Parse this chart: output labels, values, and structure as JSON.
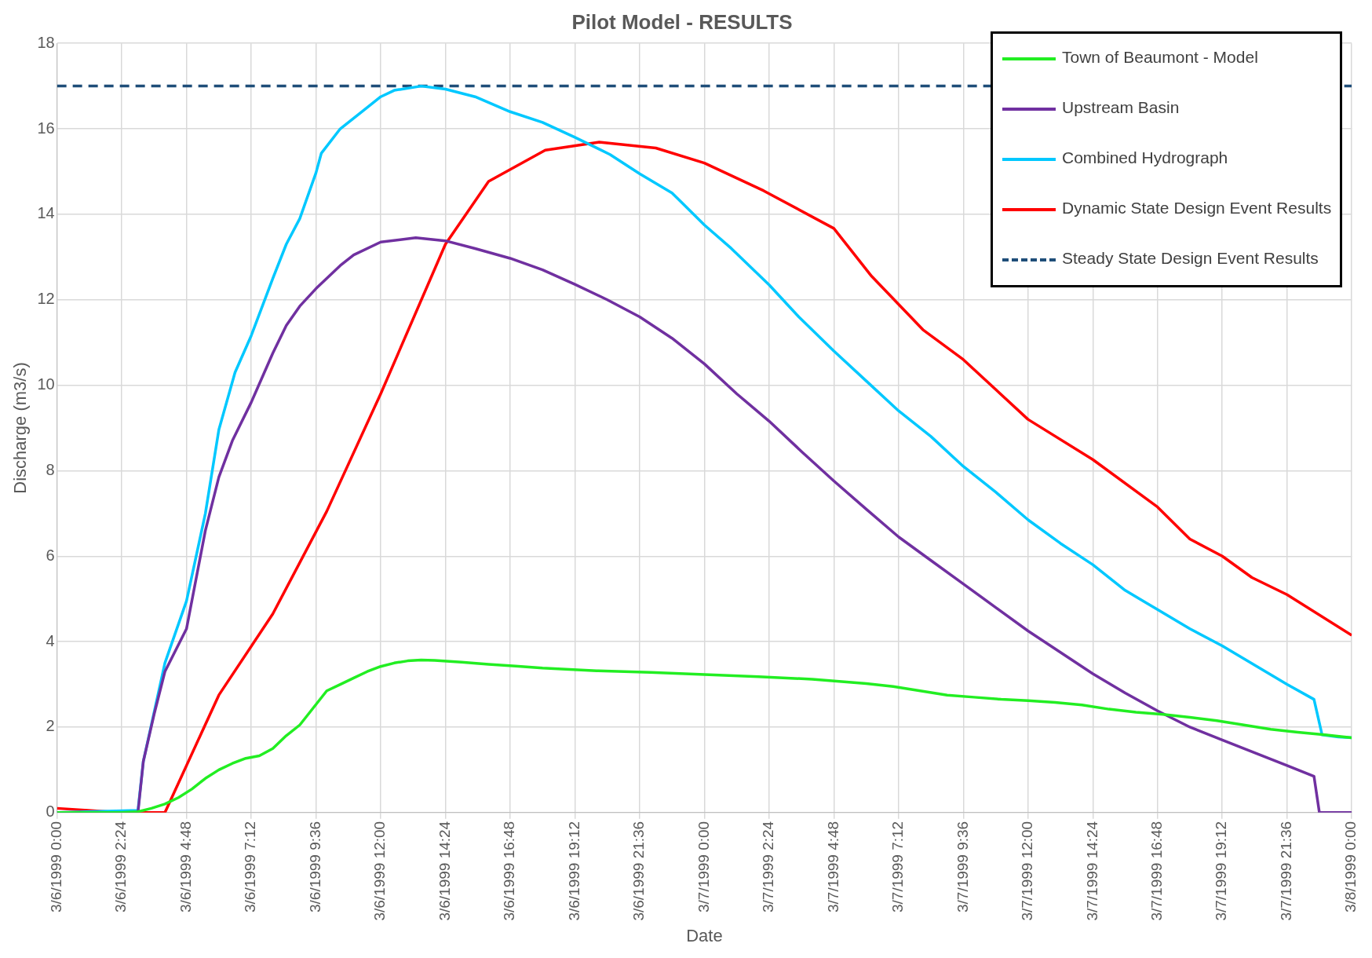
{
  "chart_data": {
    "type": "line",
    "title": "Pilot Model - RESULTS",
    "xlabel": "Date",
    "ylabel": "Discharge (m3/s)",
    "xlim": [
      "1999-03-06T00:00",
      "1999-03-08T00:00"
    ],
    "ylim": [
      0,
      18
    ],
    "xticks": [
      {
        "value": "1999-03-06T00:00",
        "label": "3/6/1999 0:00"
      },
      {
        "value": "1999-03-06T02:24",
        "label": "3/6/1999 2:24"
      },
      {
        "value": "1999-03-06T04:48",
        "label": "3/6/1999 4:48"
      },
      {
        "value": "1999-03-06T07:12",
        "label": "3/6/1999 7:12"
      },
      {
        "value": "1999-03-06T09:36",
        "label": "3/6/1999 9:36"
      },
      {
        "value": "1999-03-06T12:00",
        "label": "3/6/1999 12:00"
      },
      {
        "value": "1999-03-06T14:24",
        "label": "3/6/1999 14:24"
      },
      {
        "value": "1999-03-06T16:48",
        "label": "3/6/1999 16:48"
      },
      {
        "value": "1999-03-06T19:12",
        "label": "3/6/1999 19:12"
      },
      {
        "value": "1999-03-06T21:36",
        "label": "3/6/1999 21:36"
      },
      {
        "value": "1999-03-07T00:00",
        "label": "3/7/1999 0:00"
      },
      {
        "value": "1999-03-07T02:24",
        "label": "3/7/1999 2:24"
      },
      {
        "value": "1999-03-07T04:48",
        "label": "3/7/1999 4:48"
      },
      {
        "value": "1999-03-07T07:12",
        "label": "3/7/1999 7:12"
      },
      {
        "value": "1999-03-07T09:36",
        "label": "3/7/1999 9:36"
      },
      {
        "value": "1999-03-07T12:00",
        "label": "3/7/1999 12:00"
      },
      {
        "value": "1999-03-07T14:24",
        "label": "3/7/1999 14:24"
      },
      {
        "value": "1999-03-07T16:48",
        "label": "3/7/1999 16:48"
      },
      {
        "value": "1999-03-07T19:12",
        "label": "3/7/1999 19:12"
      },
      {
        "value": "1999-03-07T21:36",
        "label": "3/7/1999 21:36"
      },
      {
        "value": "1999-03-08T00:00",
        "label": "3/8/1999 0:00"
      }
    ],
    "yticks": [
      0,
      2,
      4,
      6,
      8,
      10,
      12,
      14,
      16,
      18
    ],
    "grid": true,
    "legend": "top right",
    "marker": "none",
    "series": [
      {
        "name": "Town of Beaumont - Model",
        "color": "#22ee22",
        "x": [
          "1999-03-06T00:00",
          "1999-03-06T02:24",
          "1999-03-06T03:00",
          "1999-03-06T03:30",
          "1999-03-06T04:00",
          "1999-03-06T04:30",
          "1999-03-06T05:00",
          "1999-03-06T05:30",
          "1999-03-06T06:00",
          "1999-03-06T06:30",
          "1999-03-06T07:00",
          "1999-03-06T07:30",
          "1999-03-06T08:00",
          "1999-03-06T08:30",
          "1999-03-06T09:00",
          "1999-03-06T09:30",
          "1999-03-06T10:00",
          "1999-03-06T10:30",
          "1999-03-06T11:00",
          "1999-03-06T11:30",
          "1999-03-06T12:00",
          "1999-03-06T12:30",
          "1999-03-06T13:00",
          "1999-03-06T13:30",
          "1999-03-06T14:00",
          "1999-03-06T15:00",
          "1999-03-06T16:00",
          "1999-03-06T17:00",
          "1999-03-06T18:00",
          "1999-03-06T19:00",
          "1999-03-06T20:00",
          "1999-03-06T22:00",
          "1999-03-07T00:00",
          "1999-03-07T02:00",
          "1999-03-07T04:00",
          "1999-03-07T05:00",
          "1999-03-07T06:00",
          "1999-03-07T07:00",
          "1999-03-07T08:00",
          "1999-03-07T09:00",
          "1999-03-07T10:00",
          "1999-03-07T11:00",
          "1999-03-07T12:00",
          "1999-03-07T13:00",
          "1999-03-07T14:00",
          "1999-03-07T15:00",
          "1999-03-07T16:00",
          "1999-03-07T17:00",
          "1999-03-07T18:00",
          "1999-03-07T19:00",
          "1999-03-07T20:00",
          "1999-03-07T21:00",
          "1999-03-07T22:00",
          "1999-03-07T23:00",
          "1999-03-08T00:00"
        ],
        "values": [
          0,
          0,
          0.02,
          0.1,
          0.2,
          0.35,
          0.55,
          0.8,
          1.0,
          1.15,
          1.27,
          1.33,
          1.5,
          1.8,
          2.05,
          2.45,
          2.85,
          3.0,
          3.15,
          3.3,
          3.42,
          3.5,
          3.55,
          3.57,
          3.56,
          3.52,
          3.47,
          3.43,
          3.38,
          3.35,
          3.32,
          3.28,
          3.23,
          3.18,
          3.12,
          3.07,
          3.02,
          2.95,
          2.85,
          2.75,
          2.7,
          2.65,
          2.62,
          2.58,
          2.52,
          2.42,
          2.35,
          2.3,
          2.23,
          2.15,
          2.05,
          1.95,
          1.88,
          1.82,
          1.75
        ]
      },
      {
        "name": "Upstream Basin",
        "color": "#7030a0",
        "x": [
          "1999-03-06T00:00",
          "1999-03-06T03:00",
          "1999-03-06T03:12",
          "1999-03-06T03:36",
          "1999-03-06T04:00",
          "1999-03-06T04:48",
          "1999-03-06T05:30",
          "1999-03-06T06:00",
          "1999-03-06T06:30",
          "1999-03-06T07:12",
          "1999-03-06T08:00",
          "1999-03-06T08:30",
          "1999-03-06T09:00",
          "1999-03-06T09:36",
          "1999-03-06T10:30",
          "1999-03-06T11:00",
          "1999-03-06T12:00",
          "1999-03-06T13:18",
          "1999-03-06T14:24",
          "1999-03-06T15:30",
          "1999-03-06T16:48",
          "1999-03-06T18:00",
          "1999-03-06T19:12",
          "1999-03-06T20:24",
          "1999-03-06T21:36",
          "1999-03-06T22:48",
          "1999-03-07T00:00",
          "1999-03-07T01:12",
          "1999-03-07T02:24",
          "1999-03-07T03:36",
          "1999-03-07T04:48",
          "1999-03-07T06:00",
          "1999-03-07T07:12",
          "1999-03-07T08:24",
          "1999-03-07T09:36",
          "1999-03-07T10:48",
          "1999-03-07T12:00",
          "1999-03-07T13:12",
          "1999-03-07T14:24",
          "1999-03-07T15:36",
          "1999-03-07T16:48",
          "1999-03-07T18:00",
          "1999-03-07T19:12",
          "1999-03-07T20:24",
          "1999-03-07T21:36",
          "1999-03-07T22:36",
          "1999-03-07T22:48",
          "1999-03-08T00:00"
        ],
        "values": [
          0,
          0,
          1.2,
          2.3,
          3.3,
          4.3,
          6.6,
          7.85,
          8.7,
          9.6,
          10.75,
          11.4,
          11.85,
          12.26,
          12.8,
          13.05,
          13.35,
          13.45,
          13.38,
          13.2,
          12.97,
          12.7,
          12.36,
          12.0,
          11.6,
          11.1,
          10.5,
          9.8,
          9.16,
          8.45,
          7.76,
          7.1,
          6.45,
          5.9,
          5.35,
          4.8,
          4.25,
          3.75,
          3.25,
          2.8,
          2.38,
          2.0,
          1.7,
          1.4,
          1.1,
          0.85,
          0,
          0
        ]
      },
      {
        "name": "Combined Hydrograph",
        "color": "#00c8ff",
        "x": [
          "1999-03-06T00:00",
          "1999-03-06T03:00",
          "1999-03-06T03:12",
          "1999-03-06T04:00",
          "1999-03-06T04:48",
          "1999-03-06T05:30",
          "1999-03-06T06:00",
          "1999-03-06T06:36",
          "1999-03-06T07:12",
          "1999-03-06T08:00",
          "1999-03-06T08:30",
          "1999-03-06T09:00",
          "1999-03-06T09:36",
          "1999-03-06T09:48",
          "1999-03-06T10:30",
          "1999-03-06T11:30",
          "1999-03-06T12:00",
          "1999-03-06T12:30",
          "1999-03-06T13:30",
          "1999-03-06T14:24",
          "1999-03-06T15:30",
          "1999-03-06T16:48",
          "1999-03-06T18:00",
          "1999-03-06T19:12",
          "1999-03-06T20:30",
          "1999-03-06T21:36",
          "1999-03-06T22:48",
          "1999-03-07T00:00",
          "1999-03-07T01:00",
          "1999-03-07T02:24",
          "1999-03-07T03:30",
          "1999-03-07T04:48",
          "1999-03-07T06:00",
          "1999-03-07T07:12",
          "1999-03-07T08:24",
          "1999-03-07T09:36",
          "1999-03-07T10:48",
          "1999-03-07T12:00",
          "1999-03-07T13:12",
          "1999-03-07T14:24",
          "1999-03-07T15:36",
          "1999-03-07T16:48",
          "1999-03-07T18:00",
          "1999-03-07T19:12",
          "1999-03-07T20:24",
          "1999-03-07T21:36",
          "1999-03-07T22:36",
          "1999-03-07T22:54",
          "1999-03-07T23:30",
          "1999-03-08T00:00"
        ],
        "values": [
          0,
          0.05,
          1.2,
          3.5,
          4.95,
          7.0,
          8.96,
          10.3,
          11.16,
          12.5,
          13.3,
          13.9,
          14.97,
          15.43,
          16.0,
          16.5,
          16.75,
          16.9,
          17.0,
          16.93,
          16.75,
          16.4,
          16.15,
          15.8,
          15.4,
          14.95,
          14.5,
          13.75,
          13.2,
          12.35,
          11.6,
          10.8,
          10.1,
          9.4,
          8.8,
          8.1,
          7.5,
          6.85,
          6.3,
          5.8,
          5.2,
          4.75,
          4.3,
          3.9,
          3.45,
          3.0,
          2.65,
          1.82,
          1.77,
          1.75
        ]
      },
      {
        "name": "Dynamic State Design Event Results",
        "color": "#ff0000",
        "x": [
          "1999-03-06T00:00",
          "1999-03-06T02:24",
          "1999-03-06T04:00",
          "1999-03-06T06:00",
          "1999-03-06T08:00",
          "1999-03-06T10:00",
          "1999-03-06T12:00",
          "1999-03-06T14:24",
          "1999-03-06T16:00",
          "1999-03-06T18:06",
          "1999-03-06T20:06",
          "1999-03-06T22:12",
          "1999-03-07T00:00",
          "1999-03-07T02:12",
          "1999-03-07T04:48",
          "1999-03-07T06:12",
          "1999-03-07T08:06",
          "1999-03-07T09:36",
          "1999-03-07T12:00",
          "1999-03-07T14:24",
          "1999-03-07T16:48",
          "1999-03-07T18:00",
          "1999-03-07T19:12",
          "1999-03-07T20:18",
          "1999-03-07T21:36",
          "1999-03-08T00:00"
        ],
        "values": [
          0.1,
          0,
          0,
          2.75,
          4.65,
          7.05,
          9.8,
          13.3,
          14.77,
          15.5,
          15.69,
          15.55,
          15.2,
          14.55,
          13.67,
          12.55,
          11.3,
          10.6,
          9.2,
          8.26,
          7.15,
          6.4,
          6.0,
          5.5,
          5.1,
          4.15
        ]
      },
      {
        "name": "Steady State Design Event Results",
        "color": "#1f4e79",
        "line_style": "dashed",
        "x": [
          "1999-03-06T00:00",
          "1999-03-08T00:00"
        ],
        "values": [
          17,
          17
        ]
      }
    ]
  }
}
